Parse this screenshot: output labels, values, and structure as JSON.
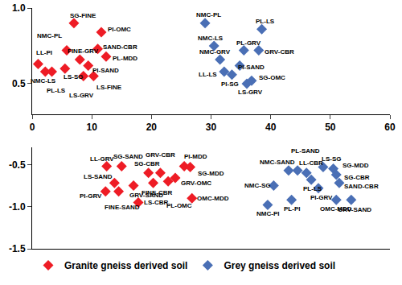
{
  "chart_data": [
    {
      "type": "scatter",
      "xlim": [
        0,
        60
      ],
      "xticks": [
        0,
        10,
        20,
        30,
        40,
        50,
        60
      ],
      "ylim": [
        0.3,
        1.0
      ],
      "yticks": [
        0.5,
        {
          "value": 1.0,
          "label": "1.0"
        }
      ],
      "grid": false,
      "series": [
        {
          "color": "#ee1c25",
          "marker": "diamond",
          "x": [
            5.8,
            7,
            11.6,
            11,
            12.4,
            1,
            2.2,
            3.3,
            5.5,
            8,
            9.4,
            10.3,
            8.6
          ],
          "y": [
            0.72,
            0.9,
            0.84,
            0.73,
            0.68,
            0.63,
            0.58,
            0.58,
            0.6,
            0.66,
            0.62,
            0.55,
            0.55
          ],
          "labels": [
            "NMC-PL",
            "SG-FINE",
            "PI-OMC",
            "SAND-CBR",
            "PL-MDD",
            "LL-PI",
            "NMC-LS",
            "PL-LS",
            "LS-SG",
            "FINE-GRV",
            "PI-SAND",
            "LS-FINE",
            "LS-GRV"
          ]
        },
        {
          "color": "#4a6fb5",
          "marker": "diamond",
          "x": [
            29,
            30.5,
            31.5,
            32.2,
            33.5,
            34.8,
            35.5,
            36,
            36.8,
            38,
            38.5
          ],
          "y": [
            0.9,
            0.75,
            0.66,
            0.58,
            0.56,
            0.62,
            0.72,
            0.5,
            0.52,
            0.72,
            0.86
          ],
          "labels": [
            "NMC-PL",
            "NMC-LS",
            "NMC-GRV",
            "LL-LS",
            "PI-SG",
            "PI-SAND",
            "PL-GRV",
            "LS-GRV",
            "SG-OMC",
            "GRV-CBR",
            "PL-LS"
          ]
        }
      ]
    },
    {
      "type": "scatter",
      "xlim": [
        0,
        60
      ],
      "ylim": [
        -1.5,
        -0.3
      ],
      "yticks": [
        -0.5,
        {
          "value": -1.0,
          "label": "-1.0"
        },
        -1.5
      ],
      "grid": false,
      "tick_labels": "y",
      "legend": "bottom",
      "series": [
        {
          "name": "Granite gneiss derived soil",
          "color": "#ee1c25",
          "marker": "diamond",
          "x": [
            12.5,
            15,
            19.5,
            21.5,
            25.5,
            26.5,
            24,
            13.8,
            12.3,
            14.5,
            17,
            17.8,
            20.3,
            22.8,
            26.8
          ],
          "y": [
            -0.52,
            -0.52,
            -0.6,
            -0.6,
            -0.52,
            -0.53,
            -0.66,
            -0.72,
            -0.82,
            -0.82,
            -0.75,
            -0.95,
            -0.72,
            -0.7,
            -0.9
          ],
          "labels": [
            "LL-GRV",
            "SG-SAND",
            "SG-CBR",
            "GRV-CBR",
            "PI-MDD",
            "SG-MDD",
            "GRV-OMC",
            "LS-SAND",
            "PI-GRV",
            "FINE-SAND",
            "GRV-SAND",
            "LS-CBR",
            "FINE-CBR",
            "PL-OMC",
            "OMC-MDD"
          ]
        },
        {
          "name": "Grey gneiss derived soil",
          "color": "#4a6fb5",
          "marker": "diamond",
          "x": [
            43,
            44.5,
            46,
            48.8,
            50.5,
            51,
            51.5,
            53.5,
            40.5,
            39.5,
            43.5,
            46.8,
            48,
            51
          ],
          "y": [
            -0.57,
            -0.57,
            -0.6,
            -0.53,
            -0.55,
            -0.62,
            -0.72,
            -0.92,
            -0.75,
            -0.98,
            -0.92,
            -0.68,
            -0.78,
            -0.92
          ],
          "labels": [
            "NMC-SAND",
            "PL-SAND",
            "LL-CBR",
            "LS-SG",
            "SG-MDD",
            "SG-CBR",
            "SAND-CBR",
            "GRV-SAND",
            "NMC-SG",
            "NMC-PI",
            "PL-PI",
            "PL-LS",
            "PI-GRV",
            "OMC-MDD"
          ]
        }
      ]
    }
  ]
}
